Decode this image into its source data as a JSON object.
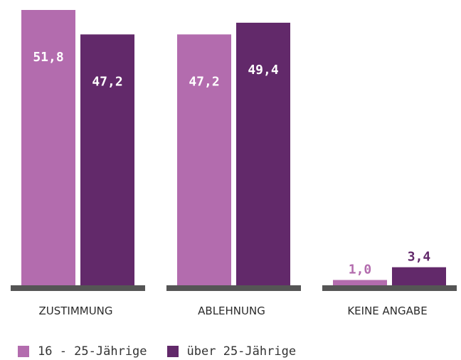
{
  "chart_data": {
    "type": "bar",
    "categories": [
      "ZUSTIMMUNG",
      "ABLEHNUNG",
      "KEINE ANGABE"
    ],
    "series": [
      {
        "name": "16 - 25-Jährige",
        "values": [
          51.8,
          47.2,
          1.0
        ],
        "labels": [
          "51,8",
          "47,2",
          "1,0"
        ],
        "color": "#b36cae"
      },
      {
        "name": "über 25-Jährige",
        "values": [
          47.2,
          49.4,
          3.4
        ],
        "labels": [
          "47,2",
          "49,4",
          "3,4"
        ],
        "color": "#62296a"
      }
    ],
    "ylim": [
      0,
      51.8
    ],
    "grid": false,
    "legend_position": "bottom-left",
    "baseline_color": "#555555",
    "title": "",
    "xlabel": "",
    "ylabel": ""
  }
}
